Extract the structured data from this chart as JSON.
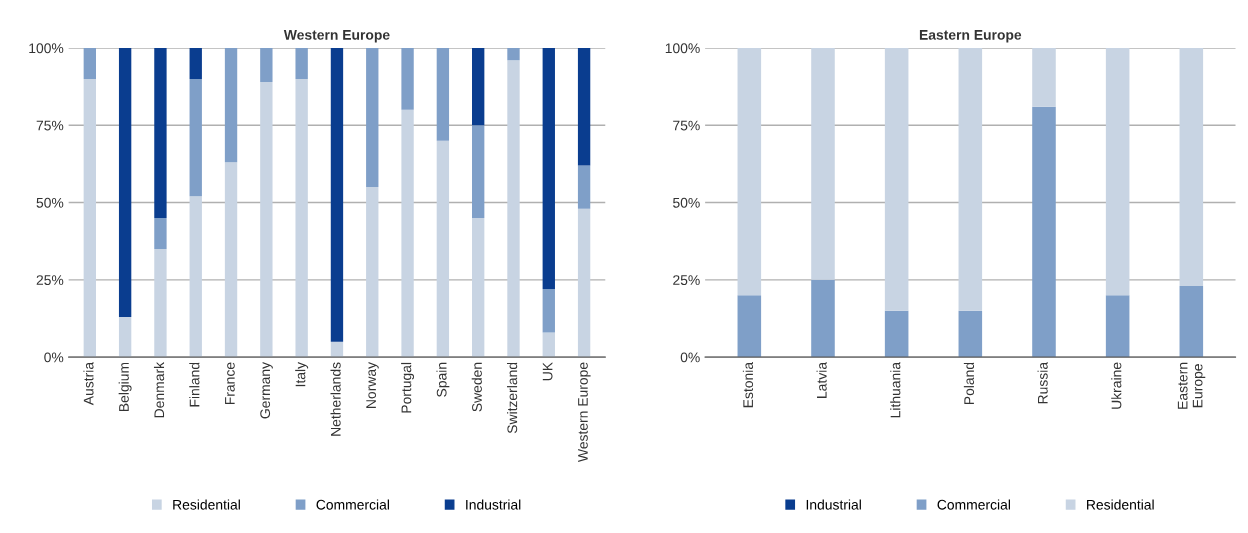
{
  "chart_data": [
    {
      "type": "bar",
      "title": "Western Europe",
      "stacked": true,
      "categories": [
        "Austria",
        "Belgium",
        "Denmark",
        "Finland",
        "France",
        "Germany",
        "Italy",
        "Netherlands",
        "Norway",
        "Portugal",
        "Spain",
        "Sweden",
        "Switzerland",
        "UK",
        "Western Europe"
      ],
      "series": [
        {
          "name": "Residential",
          "color": "#c8d4e3",
          "values": [
            90,
            13,
            35,
            52,
            63,
            89,
            90,
            5,
            55,
            80,
            70,
            45,
            96,
            8,
            48
          ]
        },
        {
          "name": "Commercial",
          "color": "#7f9fc8",
          "values": [
            10,
            0,
            10,
            38,
            37,
            11,
            10,
            0,
            45,
            20,
            30,
            30,
            4,
            14,
            14
          ]
        },
        {
          "name": "Industrial",
          "color": "#0a3d8f",
          "values": [
            0,
            87,
            55,
            10,
            0,
            0,
            0,
            95,
            0,
            0,
            0,
            25,
            0,
            78,
            38
          ]
        }
      ],
      "ylim": [
        0,
        100
      ],
      "yticks": [
        {
          "value": 0,
          "label": "0%"
        },
        {
          "value": 25,
          "label": "25%"
        },
        {
          "value": 50,
          "label": "50%"
        },
        {
          "value": 75,
          "label": "75%"
        },
        {
          "value": 100,
          "label": "100%"
        }
      ],
      "grid": "y",
      "legend": "bottom"
    },
    {
      "type": "bar",
      "title": "Eastern Europe",
      "stacked": true,
      "categories": [
        "Estonia",
        "Latvia",
        "Lithuania",
        "Poland",
        "Russia",
        "Ukraine",
        "Eastern\nEurope"
      ],
      "series": [
        {
          "name": "Industrial",
          "color": "#0a3d8f",
          "values": [
            0,
            0,
            0,
            0,
            0,
            0,
            0
          ]
        },
        {
          "name": "Commercial",
          "color": "#7f9fc8",
          "values": [
            20,
            25,
            15,
            15,
            81,
            20,
            23
          ]
        },
        {
          "name": "Residential",
          "color": "#c8d4e3",
          "values": [
            80,
            75,
            85,
            85,
            19,
            80,
            77
          ]
        }
      ],
      "ylim": [
        0,
        100
      ],
      "yticks": [
        {
          "value": 0,
          "label": "0%"
        },
        {
          "value": 25,
          "label": "25%"
        },
        {
          "value": 50,
          "label": "50%"
        },
        {
          "value": 75,
          "label": "75%"
        },
        {
          "value": 100,
          "label": "100%"
        }
      ],
      "grid": "y",
      "legend": "bottom"
    }
  ]
}
